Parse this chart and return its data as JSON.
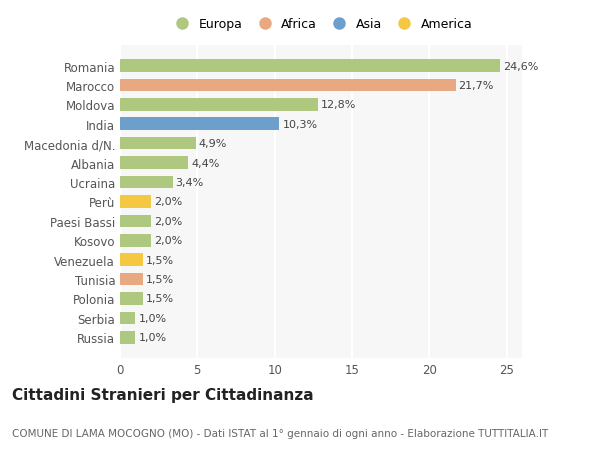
{
  "categories": [
    "Russia",
    "Serbia",
    "Polonia",
    "Tunisia",
    "Venezuela",
    "Kosovo",
    "Paesi Bassi",
    "Perù",
    "Ucraina",
    "Albania",
    "Macedonia d/N.",
    "India",
    "Moldova",
    "Marocco",
    "Romania"
  ],
  "values": [
    1.0,
    1.0,
    1.5,
    1.5,
    1.5,
    2.0,
    2.0,
    2.0,
    3.4,
    4.4,
    4.9,
    10.3,
    12.8,
    21.7,
    24.6
  ],
  "colors": [
    "#aec97f",
    "#aec97f",
    "#aec97f",
    "#e8a882",
    "#f5c842",
    "#aec97f",
    "#aec97f",
    "#f5c842",
    "#aec97f",
    "#aec97f",
    "#aec97f",
    "#6e9fcb",
    "#aec97f",
    "#e8a882",
    "#aec97f"
  ],
  "labels": [
    "1,0%",
    "1,0%",
    "1,5%",
    "1,5%",
    "1,5%",
    "2,0%",
    "2,0%",
    "2,0%",
    "3,4%",
    "4,4%",
    "4,9%",
    "10,3%",
    "12,8%",
    "21,7%",
    "24,6%"
  ],
  "legend_labels": [
    "Europa",
    "Africa",
    "Asia",
    "America"
  ],
  "legend_colors": [
    "#aec97f",
    "#e8a882",
    "#6e9fcb",
    "#f5c842"
  ],
  "title": "Cittadini Stranieri per Cittadinanza",
  "subtitle": "COMUNE DI LAMA MOCOGNO (MO) - Dati ISTAT al 1° gennaio di ogni anno - Elaborazione TUTTITALIA.IT",
  "xlim": [
    0,
    26
  ],
  "xticks": [
    0,
    5,
    10,
    15,
    20,
    25
  ],
  "background_color": "#ffffff",
  "plot_background": "#f7f7f7",
  "grid_color": "#ffffff",
  "bar_height": 0.65,
  "title_fontsize": 11,
  "subtitle_fontsize": 7.5,
  "label_fontsize": 8,
  "tick_fontsize": 8.5
}
